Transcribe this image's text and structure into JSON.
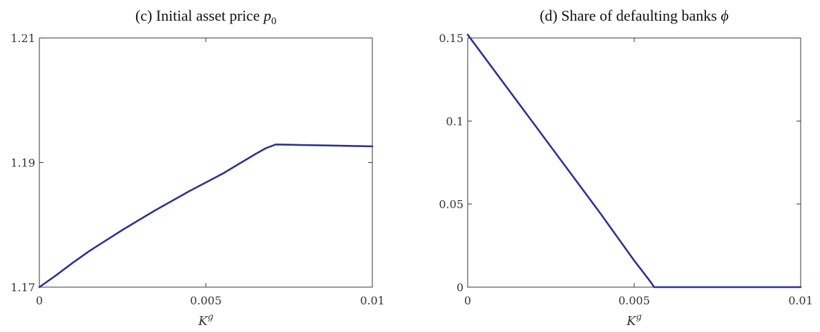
{
  "chart_data": [
    {
      "type": "line",
      "title": "(c) Initial asset price",
      "title_symbol": "p",
      "title_symbol_sub": "0",
      "xlabel": "K",
      "xlabel_sup": "g",
      "xlim": [
        0,
        0.01
      ],
      "ylim": [
        1.17,
        1.21
      ],
      "xticks": [
        0,
        0.005,
        0.01
      ],
      "xtick_labels": [
        "0",
        "0.005",
        "0.01"
      ],
      "yticks": [
        1.17,
        1.19,
        1.21
      ],
      "ytick_labels": [
        "1.17",
        "1.19",
        "1.21"
      ],
      "color": "#2b3190",
      "series": [
        {
          "x": [
            0,
            0.0005,
            0.001,
            0.0015,
            0.002,
            0.0025,
            0.003,
            0.0035,
            0.004,
            0.0045,
            0.005,
            0.0055,
            0.006,
            0.0065,
            0.0068,
            0.0071,
            0.008,
            0.009,
            0.01
          ],
          "y": [
            1.17,
            1.1719,
            1.1739,
            1.1758,
            1.1775,
            1.1792,
            1.1808,
            1.1824,
            1.1839,
            1.1854,
            1.1868,
            1.1882,
            1.1898,
            1.1914,
            1.1923,
            1.1929,
            1.1928,
            1.1927,
            1.1926
          ]
        }
      ]
    },
    {
      "type": "line",
      "title": "(d) Share of defaulting banks",
      "title_symbol": "ϕ",
      "title_symbol_sub": "",
      "xlabel": "K",
      "xlabel_sup": "g",
      "xlim": [
        0,
        0.01
      ],
      "ylim": [
        0,
        0.15
      ],
      "xticks": [
        0,
        0.005,
        0.01
      ],
      "xtick_labels": [
        "0",
        "0.005",
        "0.01"
      ],
      "yticks": [
        0,
        0.05,
        0.1,
        0.15
      ],
      "ytick_labels": [
        "0",
        "0.05",
        "0.1",
        "0.15"
      ],
      "color": "#2b3190",
      "series": [
        {
          "x": [
            0,
            0.001,
            0.002,
            0.003,
            0.004,
            0.005,
            0.0055,
            0.0056,
            0.007,
            0.008,
            0.009,
            0.01
          ],
          "y": [
            0.152,
            0.125,
            0.098,
            0.071,
            0.044,
            0.016,
            0.003,
            0,
            0,
            0,
            0,
            0
          ]
        }
      ]
    }
  ]
}
